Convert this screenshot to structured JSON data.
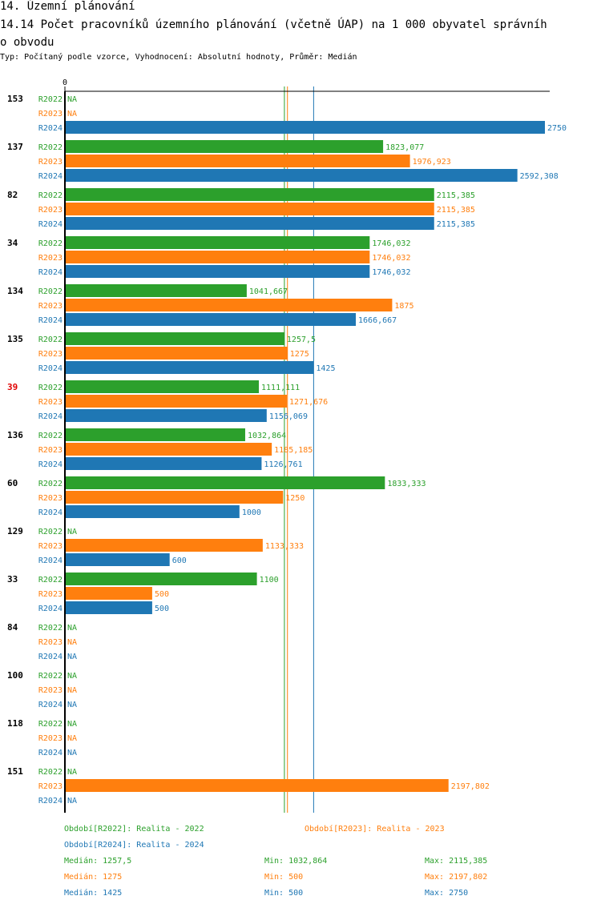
{
  "header": {
    "section_title": "14. Územní plánování",
    "chart_title_line1": "14.14 Počet pracovníků územního plánování (včetně ÚAP) na 1 000 obyvatel správníh",
    "chart_title_line2": "o obvodu",
    "subtitle": "Typ: Počítaný podle vzorce, Vyhodnocení: Absolutní hodnoty, Průměr: Medián"
  },
  "colors": {
    "R2022": "#2ca02c",
    "R2023": "#ff7f0e",
    "R2024": "#1f77b4",
    "highlight_label": "#e00000",
    "axis": "#000000"
  },
  "chart_data": {
    "type": "bar",
    "orientation": "horizontal",
    "title": "14.14 Počet pracovníků územního plánování (včetně ÚAP) na 1 000 obyvatel správního obvodu",
    "xlabel": "",
    "ylabel": "",
    "x_tick_labels": [
      "0"
    ],
    "xlim": [
      0,
      2750
    ],
    "grid": false,
    "series_names": [
      "R2022",
      "R2023",
      "R2024"
    ],
    "na_label": "NA",
    "groups": [
      {
        "label": "153",
        "highlight": false,
        "values": [
          null,
          null,
          2750
        ],
        "labels": [
          "NA",
          "NA",
          "2750"
        ]
      },
      {
        "label": "137",
        "highlight": false,
        "values": [
          1823.077,
          1976.923,
          2592.308
        ],
        "labels": [
          "1823,077",
          "1976,923",
          "2592,308"
        ]
      },
      {
        "label": "82",
        "highlight": false,
        "values": [
          2115.385,
          2115.385,
          2115.385
        ],
        "labels": [
          "2115,385",
          "2115,385",
          "2115,385"
        ]
      },
      {
        "label": "34",
        "highlight": false,
        "values": [
          1746.032,
          1746.032,
          1746.032
        ],
        "labels": [
          "1746,032",
          "1746,032",
          "1746,032"
        ]
      },
      {
        "label": "134",
        "highlight": false,
        "values": [
          1041.667,
          1875,
          1666.667
        ],
        "labels": [
          "1041,667",
          "1875",
          "1666,667"
        ]
      },
      {
        "label": "135",
        "highlight": false,
        "values": [
          1257.5,
          1275,
          1425
        ],
        "labels": [
          "1257,5",
          "1275",
          "1425"
        ]
      },
      {
        "label": "39",
        "highlight": true,
        "values": [
          1111.111,
          1271.676,
          1156.069
        ],
        "labels": [
          "1111,111",
          "1271,676",
          "1156,069"
        ]
      },
      {
        "label": "136",
        "highlight": false,
        "values": [
          1032.864,
          1185.185,
          1126.761
        ],
        "labels": [
          "1032,864",
          "1185,185",
          "1126,761"
        ]
      },
      {
        "label": "60",
        "highlight": false,
        "values": [
          1833.333,
          1250,
          1000
        ],
        "labels": [
          "1833,333",
          "1250",
          "1000"
        ]
      },
      {
        "label": "129",
        "highlight": false,
        "values": [
          null,
          1133.333,
          600
        ],
        "labels": [
          "NA",
          "1133,333",
          "600"
        ]
      },
      {
        "label": "33",
        "highlight": false,
        "values": [
          1100,
          500,
          500
        ],
        "labels": [
          "1100",
          "500",
          "500"
        ]
      },
      {
        "label": "84",
        "highlight": false,
        "values": [
          null,
          null,
          null
        ],
        "labels": [
          "NA",
          "NA",
          "NA"
        ]
      },
      {
        "label": "100",
        "highlight": false,
        "values": [
          null,
          null,
          null
        ],
        "labels": [
          "NA",
          "NA",
          "NA"
        ]
      },
      {
        "label": "118",
        "highlight": false,
        "values": [
          null,
          null,
          null
        ],
        "labels": [
          "NA",
          "NA",
          "NA"
        ]
      },
      {
        "label": "151",
        "highlight": false,
        "values": [
          null,
          2197.802,
          null
        ],
        "labels": [
          "NA",
          "2197,802",
          "NA"
        ]
      }
    ],
    "reference_lines": [
      {
        "series": "R2022",
        "type": "median",
        "value": 1257.5
      },
      {
        "series": "R2023",
        "type": "median",
        "value": 1275
      },
      {
        "series": "R2024",
        "type": "median",
        "value": 1425
      }
    ],
    "legend": {
      "placement": "bottom",
      "entries": [
        {
          "series": "R2022",
          "text": "Období[R2022]: Realita - 2022"
        },
        {
          "series": "R2023",
          "text": "Období[R2023]: Realita - 2023"
        },
        {
          "series": "R2024",
          "text": "Období[R2024]: Realita - 2024"
        }
      ]
    },
    "stats": [
      {
        "series": "R2022",
        "median": "Medián: 1257,5",
        "min": "Min: 1032,864",
        "max": "Max: 2115,385"
      },
      {
        "series": "R2023",
        "median": "Medián: 1275",
        "min": "Min: 500",
        "max": "Max: 2197,802"
      },
      {
        "series": "R2024",
        "median": "Medián: 1425",
        "min": "Min: 500",
        "max": "Max: 2750"
      }
    ]
  }
}
